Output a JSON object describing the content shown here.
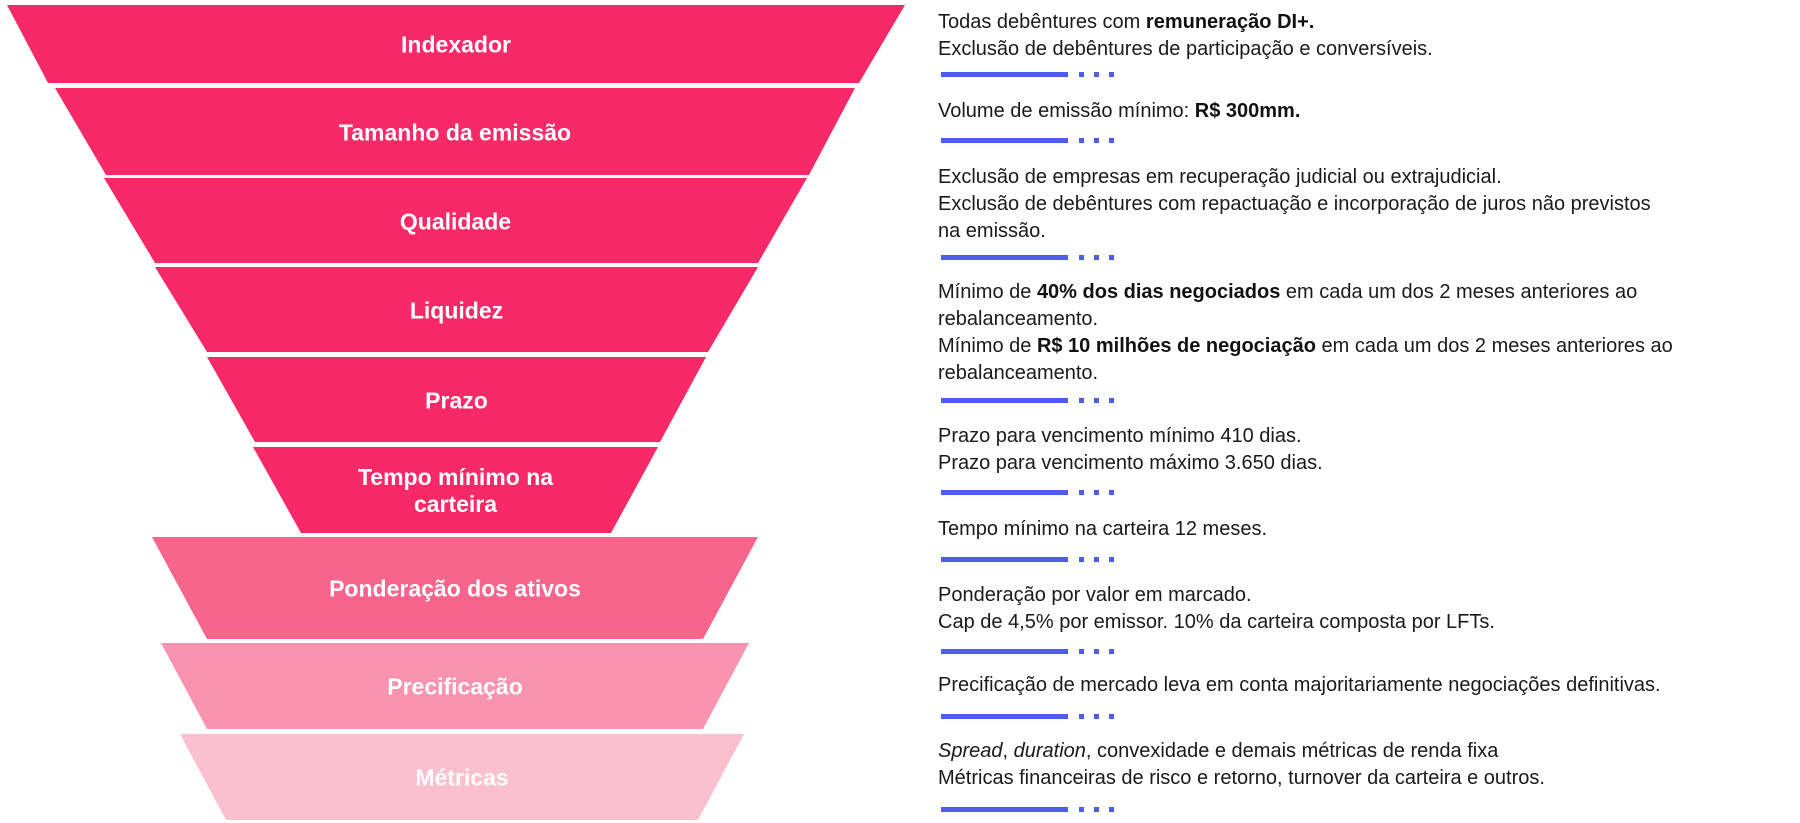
{
  "colors": {
    "primary": "#f72a67",
    "medium": "#f7648c",
    "light": "#f993b0",
    "lightest": "#fbc0d0",
    "divider": "#4f5cf0"
  },
  "funnel": [
    {
      "label_lines": [
        "Indexador"
      ],
      "color": "#f72a67"
    },
    {
      "label_lines": [
        "Tamanho da emissão"
      ],
      "color": "#f72a67"
    },
    {
      "label_lines": [
        "Qualidade"
      ],
      "color": "#f72a67"
    },
    {
      "label_lines": [
        "Liquidez"
      ],
      "color": "#f72a67"
    },
    {
      "label_lines": [
        "Prazo"
      ],
      "color": "#f72a67"
    },
    {
      "label_lines": [
        "Tempo mínimo na",
        "carteira"
      ],
      "color": "#f72a67"
    },
    {
      "label_lines": [
        "Ponderação dos ativos"
      ],
      "color": "#f7648c"
    },
    {
      "label_lines": [
        "Precificação"
      ],
      "color": "#f993b0"
    },
    {
      "label_lines": [
        "Métricas"
      ],
      "color": "#fbc0d0"
    }
  ],
  "descriptions": [
    {
      "lines": [
        [
          {
            "t": "Todas debêntures com "
          },
          {
            "t": "remuneração DI+.",
            "s": "b"
          }
        ],
        [
          {
            "t": "Exclusão de debêntures de participação e conversíveis."
          }
        ]
      ]
    },
    {
      "lines": [
        [
          {
            "t": "Volume de emissão mínimo: "
          },
          {
            "t": "R$ 300mm.",
            "s": "b"
          }
        ]
      ]
    },
    {
      "lines": [
        [
          {
            "t": "Exclusão de empresas em recuperação judicial ou extrajudicial."
          }
        ],
        [
          {
            "t": "Exclusão de debêntures com repactuação e incorporação de juros não previstos"
          }
        ],
        [
          {
            "t": "na emissão."
          }
        ]
      ]
    },
    {
      "lines": [
        [
          {
            "t": "Mínimo de "
          },
          {
            "t": "40% dos dias negociados",
            "s": "b"
          },
          {
            "t": " em cada um dos 2 meses anteriores ao"
          }
        ],
        [
          {
            "t": "rebalanceamento."
          }
        ],
        [
          {
            "t": "Mínimo de "
          },
          {
            "t": "R$ 10 milhões de negociação",
            "s": "b"
          },
          {
            "t": " em cada um dos 2 meses anteriores ao"
          }
        ],
        [
          {
            "t": "rebalanceamento."
          }
        ]
      ]
    },
    {
      "lines": [
        [
          {
            "t": "Prazo para vencimento mínimo 410 dias."
          }
        ],
        [
          {
            "t": "Prazo para vencimento máximo 3.650 dias."
          }
        ]
      ]
    },
    {
      "lines": [
        [
          {
            "t": "Tempo mínimo na carteira 12 meses."
          }
        ]
      ]
    },
    {
      "lines": [
        [
          {
            "t": "Ponderação por valor em marcado."
          }
        ],
        [
          {
            "t": "Cap de 4,5% por emissor. 10% da carteira composta por LFTs."
          }
        ]
      ]
    },
    {
      "lines": [
        [
          {
            "t": "Precificação de mercado leva em conta majoritariamente negociações definitivas."
          }
        ]
      ]
    },
    {
      "lines": [
        [
          {
            "t": "Spread",
            "s": "i"
          },
          {
            "t": ", "
          },
          {
            "t": "duration",
            "s": "i"
          },
          {
            "t": ", convexidade e demais métricas de renda fixa"
          }
        ],
        [
          {
            "t": "Métricas financeiras de risco e retorno, turnover da carteira e outros."
          }
        ]
      ]
    }
  ]
}
